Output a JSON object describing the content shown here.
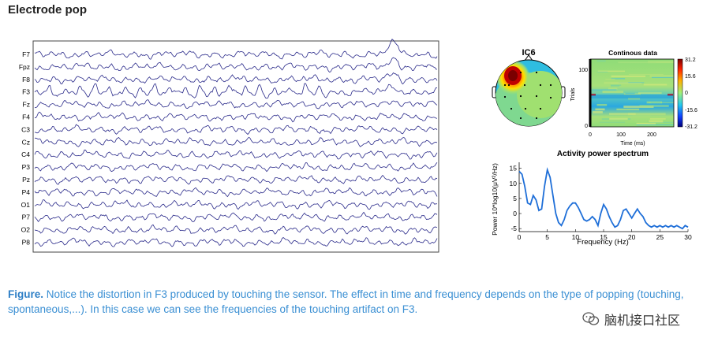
{
  "heading": "Electrode pop",
  "eeg": {
    "channels": [
      "F7",
      "Fpz",
      "F8",
      "F3",
      "Fz",
      "F4",
      "C3",
      "Cz",
      "C4",
      "P3",
      "Pz",
      "P4",
      "O1",
      "P7",
      "O2",
      "P8"
    ],
    "trace_color": "#2a2a8a",
    "artifact_channel": "F3"
  },
  "ic_panel": {
    "title": "IC6",
    "continuous": {
      "title": "Continous data",
      "ylabel": "Trials",
      "xlabel": "Time (ms)",
      "yticks": [
        "100",
        "0"
      ],
      "xticks": [
        "0",
        "100",
        "200"
      ],
      "colorbar_ticks": [
        "31.2",
        "15.6",
        "0",
        "-15.6",
        "-31.2"
      ]
    }
  },
  "chart_data": {
    "type": "line",
    "title": "Activity power spectrum",
    "xlabel": "Frequency (Hz)",
    "ylabel": "Power 10*log10(μV²/Hz)",
    "xlim": [
      0,
      30
    ],
    "ylim": [
      -6,
      17
    ],
    "xticks": [
      0,
      5,
      10,
      15,
      20,
      25,
      30
    ],
    "yticks": [
      15,
      10,
      5,
      0,
      -5
    ],
    "color": "#1f6fd8",
    "x": [
      0,
      0.5,
      1,
      1.5,
      2,
      2.5,
      3,
      3.5,
      4,
      4.5,
      5,
      5.5,
      6,
      6.5,
      7,
      7.5,
      8,
      8.5,
      9,
      9.5,
      10,
      10.5,
      11,
      11.5,
      12,
      12.5,
      13,
      13.5,
      14,
      14.5,
      15,
      15.5,
      16,
      16.5,
      17,
      17.5,
      18,
      18.5,
      19,
      19.5,
      20,
      20.5,
      21,
      21.5,
      22,
      22.5,
      23,
      23.5,
      24,
      24.5,
      25,
      25.5,
      26,
      26.5,
      27,
      27.5,
      28,
      28.5,
      29,
      29.5,
      30
    ],
    "y": [
      14,
      13,
      9,
      3.5,
      3,
      6,
      4.5,
      1,
      1.5,
      9,
      14.5,
      12,
      6,
      0,
      -3,
      -4,
      -2,
      1,
      2.5,
      3.5,
      3.5,
      2,
      0,
      -2,
      -2.5,
      -2,
      -1,
      -2,
      -4,
      0,
      3,
      1.5,
      -1,
      -3,
      -4.5,
      -4,
      -2,
      1,
      1.5,
      0,
      -1.5,
      0,
      1.5,
      0,
      -1,
      -3,
      -4,
      -4.5,
      -4,
      -4.5,
      -4,
      -4.5,
      -4,
      -4.5,
      -4,
      -4.5,
      -4,
      -4.5,
      -5,
      -4,
      -4.5
    ]
  },
  "caption": {
    "label": "Figure.",
    "text": " Notice the distortion in F3 produced by touching the sensor. The effect in time and frequency depends on the type of popping (touching, spontaneous,...). In this case we can see the frequencies of the touching artifact on F3."
  },
  "watermark": {
    "text": "脑机接口社区",
    "icon": "wechat-icon"
  }
}
